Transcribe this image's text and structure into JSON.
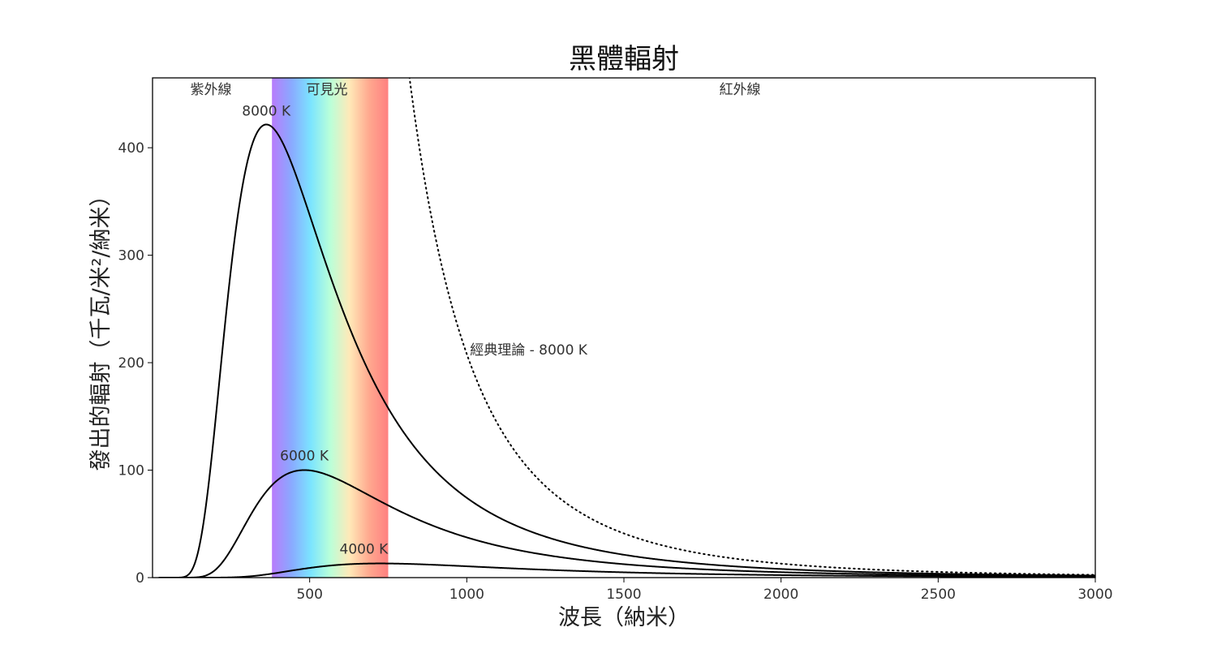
{
  "chart_data": {
    "type": "line",
    "title": "黑體輻射",
    "xlabel": "波長（納米）",
    "ylabel": "發出的輻射（千瓦/米²/納米）",
    "xlim": [
      0,
      3000
    ],
    "ylim": [
      0,
      465
    ],
    "x_ticks": [
      500,
      1000,
      1500,
      2000,
      2500,
      3000
    ],
    "y_ticks": [
      0,
      100,
      200,
      300,
      400
    ],
    "grid": false,
    "regions": [
      {
        "label": "紫外線",
        "start": 0,
        "end": 380
      },
      {
        "label": "可見光",
        "start": 380,
        "end": 750
      },
      {
        "label": "紅外線",
        "start": 750,
        "end": 3000
      }
    ],
    "spectrum_colors": [
      "#b77cfb",
      "#8aa9ff",
      "#7be4ff",
      "#b9ffd9",
      "#ffe9b8",
      "#ffa98f",
      "#ff8080"
    ],
    "series": [
      {
        "name": "8000 K",
        "temperature": 8000,
        "style": "solid",
        "color": "#000000",
        "peak_x": 362,
        "peak_y": 421
      },
      {
        "name": "6000 K",
        "temperature": 6000,
        "style": "solid",
        "color": "#000000",
        "peak_x": 483,
        "peak_y": 100
      },
      {
        "name": "4000 K",
        "temperature": 4000,
        "style": "solid",
        "color": "#000000",
        "peak_x": 724,
        "peak_y": 13.3
      },
      {
        "name": "經典理論 - 8000 K",
        "temperature": 8000,
        "style": "dotted",
        "color": "#000000",
        "label_x": 1010,
        "label_y": 212
      }
    ]
  }
}
